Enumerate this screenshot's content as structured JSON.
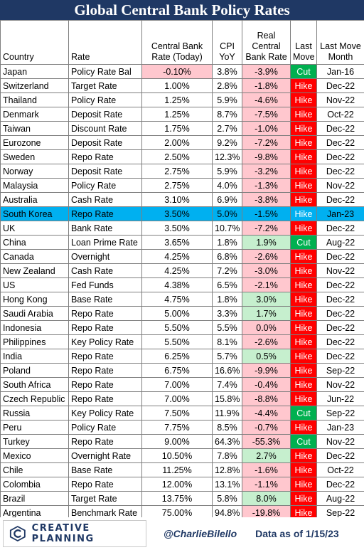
{
  "title": "Global Central Bank Policy Rates",
  "headers": [
    "Country",
    "Rate",
    "Central Bank Rate (Today)",
    "CPI YoY",
    "Real Central Bank Rate",
    "Last Move",
    "Last Move Month"
  ],
  "header_lines": [
    [
      "Country"
    ],
    [
      "Rate"
    ],
    [
      "Central Bank",
      "Rate (Today)"
    ],
    [
      "CPI",
      "YoY"
    ],
    [
      "Real",
      "Central",
      "Bank Rate"
    ],
    [
      "Last",
      "Move"
    ],
    [
      "Last Move",
      "Month"
    ]
  ],
  "highlighted_country": "South Korea",
  "colors": {
    "title_bg": "#1f3864",
    "highlight_row": "#00b0f0",
    "negative_real": "#ffc7ce",
    "positive_real": "#c6efce",
    "hike": "#ff0000",
    "cut": "#00b050"
  },
  "rows": [
    {
      "country": "Japan",
      "rate": "Policy Rate Bal",
      "cb_rate": "-0.10%",
      "cpi": "3.8%",
      "real": "-3.9%",
      "move": "Cut",
      "month": "Jan-16"
    },
    {
      "country": "Switzerland",
      "rate": "Target Rate",
      "cb_rate": "1.00%",
      "cpi": "2.8%",
      "real": "-1.8%",
      "move": "Hike",
      "month": "Dec-22"
    },
    {
      "country": "Thailand",
      "rate": "Policy Rate",
      "cb_rate": "1.25%",
      "cpi": "5.9%",
      "real": "-4.6%",
      "move": "Hike",
      "month": "Nov-22"
    },
    {
      "country": "Denmark",
      "rate": "Deposit Rate",
      "cb_rate": "1.25%",
      "cpi": "8.7%",
      "real": "-7.5%",
      "move": "Hike",
      "month": "Oct-22"
    },
    {
      "country": "Taiwan",
      "rate": "Discount Rate",
      "cb_rate": "1.75%",
      "cpi": "2.7%",
      "real": "-1.0%",
      "move": "Hike",
      "month": "Dec-22"
    },
    {
      "country": "Eurozone",
      "rate": "Deposit Rate",
      "cb_rate": "2.00%",
      "cpi": "9.2%",
      "real": "-7.2%",
      "move": "Hike",
      "month": "Dec-22"
    },
    {
      "country": "Sweden",
      "rate": "Repo Rate",
      "cb_rate": "2.50%",
      "cpi": "12.3%",
      "real": "-9.8%",
      "move": "Hike",
      "month": "Dec-22"
    },
    {
      "country": "Norway",
      "rate": "Deposit Rate",
      "cb_rate": "2.75%",
      "cpi": "5.9%",
      "real": "-3.2%",
      "move": "Hike",
      "month": "Dec-22"
    },
    {
      "country": "Malaysia",
      "rate": "Policy Rate",
      "cb_rate": "2.75%",
      "cpi": "4.0%",
      "real": "-1.3%",
      "move": "Hike",
      "month": "Nov-22"
    },
    {
      "country": "Australia",
      "rate": "Cash Rate",
      "cb_rate": "3.10%",
      "cpi": "6.9%",
      "real": "-3.8%",
      "move": "Hike",
      "month": "Dec-22"
    },
    {
      "country": "South Korea",
      "rate": "Repo Rate",
      "cb_rate": "3.50%",
      "cpi": "5.0%",
      "real": "-1.5%",
      "move": "Hike",
      "month": "Jan-23"
    },
    {
      "country": "UK",
      "rate": "Bank Rate",
      "cb_rate": "3.50%",
      "cpi": "10.7%",
      "real": "-7.2%",
      "move": "Hike",
      "month": "Dec-22"
    },
    {
      "country": "China",
      "rate": "Loan Prime Rate",
      "cb_rate": "3.65%",
      "cpi": "1.8%",
      "real": "1.9%",
      "move": "Cut",
      "month": "Aug-22"
    },
    {
      "country": "Canada",
      "rate": "Overnight",
      "cb_rate": "4.25%",
      "cpi": "6.8%",
      "real": "-2.6%",
      "move": "Hike",
      "month": "Dec-22"
    },
    {
      "country": "New Zealand",
      "rate": "Cash Rate",
      "cb_rate": "4.25%",
      "cpi": "7.2%",
      "real": "-3.0%",
      "move": "Hike",
      "month": "Nov-22"
    },
    {
      "country": "US",
      "rate": "Fed Funds",
      "cb_rate": "4.38%",
      "cpi": "6.5%",
      "real": "-2.1%",
      "move": "Hike",
      "month": "Dec-22"
    },
    {
      "country": "Hong Kong",
      "rate": "Base Rate",
      "cb_rate": "4.75%",
      "cpi": "1.8%",
      "real": "3.0%",
      "move": "Hike",
      "month": "Dec-22"
    },
    {
      "country": "Saudi Arabia",
      "rate": "Repo Rate",
      "cb_rate": "5.00%",
      "cpi": "3.3%",
      "real": "1.7%",
      "move": "Hike",
      "month": "Dec-22"
    },
    {
      "country": "Indonesia",
      "rate": "Repo Rate",
      "cb_rate": "5.50%",
      "cpi": "5.5%",
      "real": "0.0%",
      "move": "Hike",
      "month": "Dec-22"
    },
    {
      "country": "Philippines",
      "rate": "Key Policy Rate",
      "cb_rate": "5.50%",
      "cpi": "8.1%",
      "real": "-2.6%",
      "move": "Hike",
      "month": "Dec-22"
    },
    {
      "country": "India",
      "rate": "Repo Rate",
      "cb_rate": "6.25%",
      "cpi": "5.7%",
      "real": "0.5%",
      "move": "Hike",
      "month": "Dec-22"
    },
    {
      "country": "Poland",
      "rate": "Repo Rate",
      "cb_rate": "6.75%",
      "cpi": "16.6%",
      "real": "-9.9%",
      "move": "Hike",
      "month": "Sep-22"
    },
    {
      "country": "South Africa",
      "rate": "Repo Rate",
      "cb_rate": "7.00%",
      "cpi": "7.4%",
      "real": "-0.4%",
      "move": "Hike",
      "month": "Nov-22"
    },
    {
      "country": "Czech Republic",
      "rate": "Repo Rate",
      "cb_rate": "7.00%",
      "cpi": "15.8%",
      "real": "-8.8%",
      "move": "Hike",
      "month": "Jun-22"
    },
    {
      "country": "Russia",
      "rate": "Key Policy Rate",
      "cb_rate": "7.50%",
      "cpi": "11.9%",
      "real": "-4.4%",
      "move": "Cut",
      "month": "Sep-22"
    },
    {
      "country": "Peru",
      "rate": "Policy Rate",
      "cb_rate": "7.75%",
      "cpi": "8.5%",
      "real": "-0.7%",
      "move": "Hike",
      "month": "Jan-23"
    },
    {
      "country": "Turkey",
      "rate": "Repo Rate",
      "cb_rate": "9.00%",
      "cpi": "64.3%",
      "real": "-55.3%",
      "move": "Cut",
      "month": "Nov-22"
    },
    {
      "country": "Mexico",
      "rate": "Overnight Rate",
      "cb_rate": "10.50%",
      "cpi": "7.8%",
      "real": "2.7%",
      "move": "Hike",
      "month": "Dec-22"
    },
    {
      "country": "Chile",
      "rate": "Base Rate",
      "cb_rate": "11.25%",
      "cpi": "12.8%",
      "real": "-1.6%",
      "move": "Hike",
      "month": "Oct-22"
    },
    {
      "country": "Colombia",
      "rate": "Repo Rate",
      "cb_rate": "12.00%",
      "cpi": "13.1%",
      "real": "-1.1%",
      "move": "Hike",
      "month": "Dec-22"
    },
    {
      "country": "Brazil",
      "rate": "Target Rate",
      "cb_rate": "13.75%",
      "cpi": "5.8%",
      "real": "8.0%",
      "move": "Hike",
      "month": "Aug-22"
    },
    {
      "country": "Argentina",
      "rate": "Benchmark Rate",
      "cb_rate": "75.00%",
      "cpi": "94.8%",
      "real": "-19.8%",
      "move": "Hike",
      "month": "Sep-22"
    }
  ],
  "footer": {
    "logo_text": "CREATIVE PLANNING",
    "logo_icon": "creative-planning-logo-icon",
    "handle": "@CharlieBilello",
    "as_of": "Data as of 1/15/23"
  }
}
